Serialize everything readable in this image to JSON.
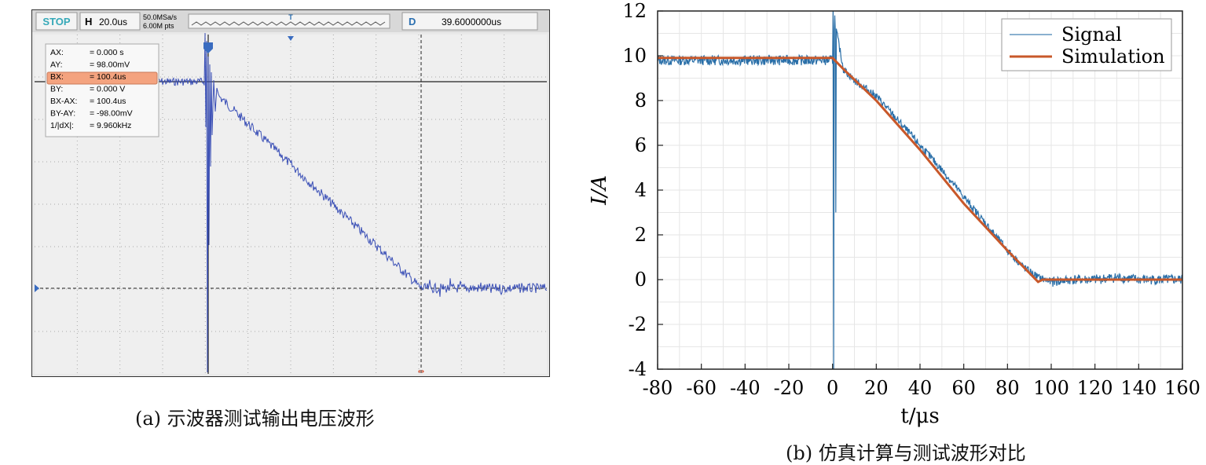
{
  "panel_a": {
    "caption": "(a) 示波器测试输出电压波形",
    "toolbar": {
      "stop_label": "STOP",
      "h_label": "H",
      "h_value": "20.0us",
      "rate_line1": "50.0MSa/s",
      "rate_line2": "6.00M pts",
      "trigger_marker": "T",
      "d_label": "D",
      "d_value": "39.6000000us"
    },
    "cursor_box": {
      "rows": [
        {
          "label": "AX:",
          "value": "=  0.000 s"
        },
        {
          "label": "AY:",
          "value": "=  98.00mV"
        },
        {
          "label": "BX:",
          "value": "=  100.4us"
        },
        {
          "label": "BY:",
          "value": "=  0.000 V"
        },
        {
          "label": "BX-AX:",
          "value": "=  100.4us"
        },
        {
          "label": "BY-AY:",
          "value": "=  -98.00mV"
        },
        {
          "label": "1/|dX|:",
          "value": "=  9.960kHz"
        }
      ],
      "highlight_row": 2,
      "highlight_color": "#f4a37f"
    },
    "colors": {
      "waveform": "#3a4fb6",
      "grid_dots": "#9a9a9a",
      "stop_text": "#35a8b8"
    }
  },
  "panel_b": {
    "caption": "(b) 仿真计算与测试波形对比",
    "chart_data": {
      "type": "line",
      "xlabel": "t/μs",
      "ylabel": "I/A",
      "xlim": [
        -80,
        160
      ],
      "ylim": [
        -4,
        12
      ],
      "xticks": [
        -80,
        -60,
        -40,
        -20,
        0,
        20,
        40,
        60,
        80,
        100,
        120,
        140,
        160
      ],
      "yticks": [
        -4,
        -2,
        0,
        2,
        4,
        6,
        8,
        10,
        12
      ],
      "grid": true,
      "legend_position": "top-right",
      "series": [
        {
          "name": "Signal",
          "color": "#2a6fa8",
          "x": [
            -80,
            0,
            1,
            5,
            10,
            20,
            30,
            40,
            50,
            60,
            70,
            80,
            88,
            94,
            100,
            110,
            120,
            130,
            140,
            150,
            160
          ],
          "y": [
            9.8,
            9.8,
            11.5,
            9.4,
            8.9,
            8.2,
            7.1,
            6.0,
            4.9,
            3.7,
            2.5,
            1.3,
            0.5,
            0.1,
            -0.1,
            0.0,
            0.0,
            0.1,
            0.0,
            0.0,
            0.0
          ]
        },
        {
          "name": "Simulation",
          "color": "#c8582a",
          "x": [
            -80,
            0,
            5,
            20,
            40,
            60,
            80,
            94,
            96,
            160
          ],
          "y": [
            9.9,
            9.9,
            9.4,
            8.0,
            5.8,
            3.4,
            1.3,
            -0.1,
            0.0,
            0.0
          ]
        }
      ]
    }
  }
}
